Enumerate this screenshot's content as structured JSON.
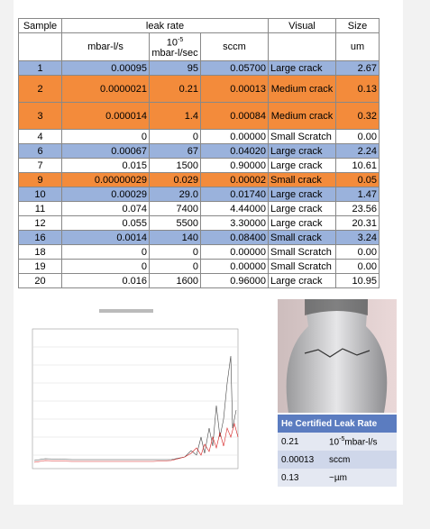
{
  "table": {
    "header": {
      "sample": "Sample",
      "group": "leak rate",
      "visual": "Visual",
      "size": "Size",
      "units": {
        "mbar": "mbar-l/s",
        "exp_base": "10",
        "exp": "-5",
        "exp_unit": "mbar-l/sec",
        "sccm": "sccm",
        "size": "um"
      }
    },
    "rows": [
      [
        "1",
        "0.00095",
        "95",
        "0.05700",
        "Large crack",
        "2.67"
      ],
      [
        "2",
        "0.0000021",
        "0.21",
        "0.00013",
        "Medium crack",
        "0.13"
      ],
      [
        "3",
        "0.000014",
        "1.4",
        "0.00084",
        "Medium crack",
        "0.32"
      ],
      [
        "4",
        "0",
        "0",
        "0.00000",
        "Small Scratch",
        "0.00"
      ],
      [
        "6",
        "0.00067",
        "67",
        "0.04020",
        "Large crack",
        "2.24"
      ],
      [
        "7",
        "0.015",
        "1500",
        "0.90000",
        "Large crack",
        "10.61"
      ],
      [
        "9",
        "0.00000029",
        "0.029",
        "0.00002",
        "Small crack",
        "0.05"
      ],
      [
        "10",
        "0.00029",
        "29.0",
        "0.01740",
        "Large crack",
        "1.47"
      ],
      [
        "11",
        "0.074",
        "7400",
        "4.44000",
        "Large crack",
        "23.56"
      ],
      [
        "12",
        "0.055",
        "5500",
        "3.30000",
        "Large crack",
        "20.31"
      ],
      [
        "16",
        "0.0014",
        "140",
        "0.08400",
        "Small crack",
        "3.24"
      ],
      [
        "18",
        "0",
        "0",
        "0.00000",
        "Small Scratch",
        "0.00"
      ],
      [
        "19",
        "0",
        "0",
        "0.00000",
        "Small Scratch",
        "0.00"
      ],
      [
        "20",
        "0.016",
        "1600",
        "0.96000",
        "Large crack",
        "10.95"
      ]
    ]
  },
  "certified": {
    "title": "He Certified Leak Rate",
    "rows": [
      {
        "value": "0.21",
        "unit_base": "10",
        "unit_exp": "-5",
        "unit": "mbar-l/s"
      },
      {
        "value": "0.00013",
        "unit": "sccm"
      },
      {
        "value": "0.13",
        "unit": "~µm"
      }
    ]
  }
}
